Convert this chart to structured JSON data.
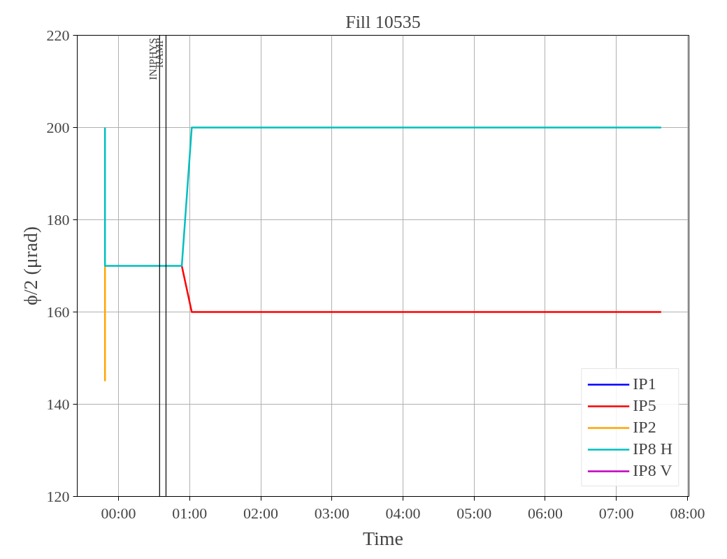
{
  "chart_data": {
    "type": "line",
    "title": "Fill 10535",
    "xlabel": "Time",
    "ylabel": "ϕ/2 (μrad)",
    "xlim": [
      -0.58,
      8.02
    ],
    "ylim": [
      120,
      220
    ],
    "xticks": [
      {
        "value": 0,
        "label": "00:00"
      },
      {
        "value": 1,
        "label": "01:00"
      },
      {
        "value": 2,
        "label": "02:00"
      },
      {
        "value": 3,
        "label": "03:00"
      },
      {
        "value": 4,
        "label": "04:00"
      },
      {
        "value": 5,
        "label": "05:00"
      },
      {
        "value": 6,
        "label": "06:00"
      },
      {
        "value": 7,
        "label": "07:00"
      },
      {
        "value": 8,
        "label": "08:00"
      }
    ],
    "yticks": [
      120,
      140,
      160,
      180,
      200,
      220
    ],
    "grid": true,
    "legend": "bottom right",
    "series": [
      {
        "name": "IP1",
        "color": "#0000ff"
      },
      {
        "name": "IP5",
        "color": "#ff0000",
        "x": [
          0.89,
          1.03,
          7.63
        ],
        "values": [
          170,
          160,
          160
        ]
      },
      {
        "name": "IP2",
        "color": "#ffa500",
        "x": [
          -0.19,
          -0.19
        ],
        "values": [
          145,
          170
        ]
      },
      {
        "name": "IP8 H",
        "color": "#00bfbf",
        "x": [
          -0.19,
          -0.19,
          0.89,
          1.03,
          7.63
        ],
        "values": [
          200,
          170,
          170,
          200,
          200
        ]
      },
      {
        "name": "IP8 V",
        "color": "#bf00bf"
      }
    ],
    "ref_lines": [
      {
        "axis": "x",
        "value": 0.578,
        "label": "INJPHYS",
        "color": "#000000"
      },
      {
        "axis": "x",
        "value": 0.668,
        "label": "RAMP",
        "color": "#000000"
      }
    ]
  }
}
